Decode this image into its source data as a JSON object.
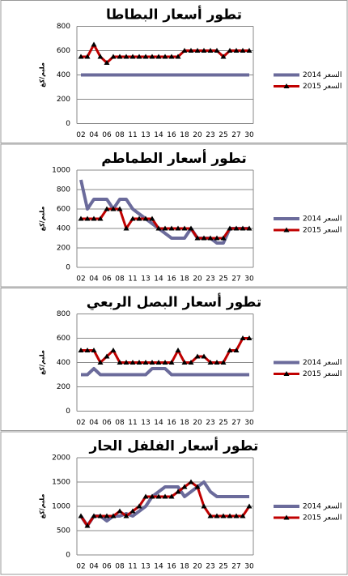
{
  "chart_data": [
    {
      "type": "line",
      "title": "تطور أسعار البطاطا",
      "y_label": "مليم/كغ",
      "categories": [
        "02",
        null,
        "04",
        null,
        "06",
        null,
        "08",
        null,
        "11",
        null,
        "13",
        null,
        "14",
        null,
        "16",
        null,
        "18",
        null,
        "20",
        null,
        "23",
        null,
        "25",
        null,
        "27",
        null,
        "30"
      ],
      "ylim": [
        0,
        800
      ],
      "yticks": [
        0,
        200,
        400,
        600,
        800
      ],
      "series": [
        {
          "name": "السعر 2014",
          "color": "#6b6b9b",
          "values": [
            400,
            400,
            400,
            400,
            400,
            400,
            400,
            400,
            400,
            400,
            400,
            400,
            400,
            400,
            400,
            400,
            400,
            400,
            400,
            400,
            400,
            400,
            400,
            400,
            400,
            400,
            400
          ]
        },
        {
          "name": "السعر 2015",
          "color": "#c00000",
          "values": [
            550,
            550,
            650,
            550,
            500,
            550,
            550,
            550,
            550,
            550,
            550,
            550,
            550,
            550,
            550,
            550,
            600,
            600,
            600,
            600,
            600,
            600,
            550,
            600,
            600,
            600,
            600
          ]
        }
      ]
    },
    {
      "type": "line",
      "title": "تطور أسعار الطماطم",
      "y_label": "مليم/كغ",
      "categories": [
        "02",
        null,
        "04",
        null,
        "06",
        null,
        "08",
        null,
        "11",
        null,
        "13",
        null,
        "14",
        null,
        "16",
        null,
        "18",
        null,
        "20",
        null,
        "23",
        null,
        "25",
        null,
        "27",
        null,
        "30"
      ],
      "ylim": [
        0,
        1000
      ],
      "yticks": [
        0,
        200,
        400,
        600,
        800,
        1000
      ],
      "series": [
        {
          "name": "السعر 2014",
          "color": "#6b6b9b",
          "values": [
            900,
            600,
            700,
            700,
            700,
            600,
            700,
            700,
            600,
            550,
            500,
            450,
            400,
            350,
            300,
            300,
            300,
            400,
            300,
            300,
            300,
            250,
            250,
            400,
            400,
            400,
            400
          ]
        },
        {
          "name": "السعر 2015",
          "color": "#c00000",
          "values": [
            500,
            500,
            500,
            500,
            600,
            600,
            600,
            400,
            500,
            500,
            500,
            500,
            400,
            400,
            400,
            400,
            400,
            400,
            300,
            300,
            300,
            300,
            300,
            400,
            400,
            400,
            400
          ]
        }
      ]
    },
    {
      "type": "line",
      "title": "تطور أسعار البصل الربعي",
      "y_label": "مليم/كغ",
      "categories": [
        "02",
        null,
        "04",
        null,
        "06",
        null,
        "08",
        null,
        "11",
        null,
        "13",
        null,
        "14",
        null,
        "16",
        null,
        "18",
        null,
        "20",
        null,
        "23",
        null,
        "25",
        null,
        "27",
        null,
        "30"
      ],
      "ylim": [
        0,
        800
      ],
      "yticks": [
        0,
        200,
        400,
        600,
        800
      ],
      "series": [
        {
          "name": "السعر 2014",
          "color": "#6b6b9b",
          "values": [
            300,
            300,
            350,
            300,
            300,
            300,
            300,
            300,
            300,
            300,
            300,
            350,
            350,
            350,
            300,
            300,
            300,
            300,
            300,
            300,
            300,
            300,
            300,
            300,
            300,
            300,
            300
          ]
        },
        {
          "name": "السعر 2015",
          "color": "#c00000",
          "values": [
            500,
            500,
            500,
            400,
            450,
            500,
            400,
            400,
            400,
            400,
            400,
            400,
            400,
            400,
            400,
            500,
            400,
            400,
            450,
            450,
            400,
            400,
            400,
            500,
            500,
            600,
            600
          ]
        }
      ]
    },
    {
      "type": "line",
      "title": "تطور أسعار الفلفل الحار",
      "y_label": "مليم/كغ",
      "categories": [
        "02",
        null,
        "04",
        null,
        "06",
        null,
        "08",
        null,
        "11",
        null,
        "13",
        null,
        "14",
        null,
        "16",
        null,
        "18",
        null,
        "20",
        null,
        "23",
        null,
        "25",
        null,
        "27",
        null,
        "30"
      ],
      "ylim": [
        0,
        2000
      ],
      "yticks": [
        0,
        500,
        1000,
        1500,
        2000
      ],
      "series": [
        {
          "name": "السعر 2014",
          "color": "#6b6b9b",
          "values": [
            800,
            600,
            800,
            800,
            700,
            800,
            800,
            850,
            800,
            900,
            1000,
            1200,
            1300,
            1400,
            1400,
            1400,
            1200,
            1300,
            1400,
            1500,
            1300,
            1200,
            1200,
            1200,
            1200,
            1200,
            1200
          ]
        },
        {
          "name": "السعر 2015",
          "color": "#c00000",
          "values": [
            800,
            600,
            800,
            800,
            800,
            800,
            900,
            800,
            900,
            1000,
            1200,
            1200,
            1200,
            1200,
            1200,
            1300,
            1400,
            1500,
            1400,
            1000,
            800,
            800,
            800,
            800,
            800,
            800,
            1000
          ]
        }
      ]
    }
  ]
}
